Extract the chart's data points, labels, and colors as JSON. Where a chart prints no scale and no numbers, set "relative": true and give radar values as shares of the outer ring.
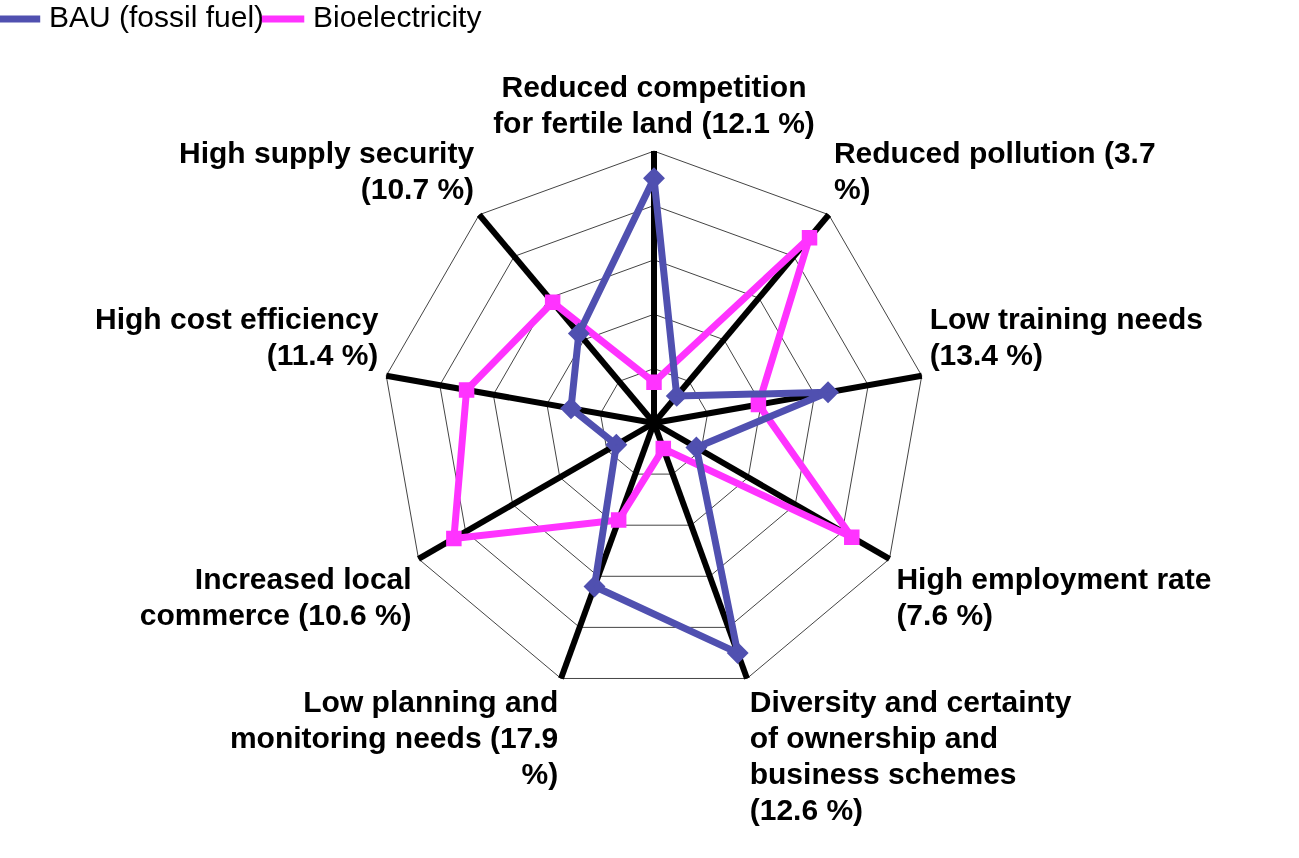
{
  "chart_data": {
    "type": "radar",
    "relative": true,
    "grid": true,
    "legend": "top left",
    "categories": [
      "Reduced competition for fertile land (12.1 %)",
      "Reduced pollution (3.7 %)",
      "Low training needs (13.4 %)",
      "High employment rate (7.6 %)",
      "Diversity and certainty of ownership and business schemes (12.6 %)",
      "Low planning and monitoring needs (17.9 %)",
      "Increased local commerce (10.6 %)",
      "High cost efficiency (11.4 %)",
      "High supply security (10.7 %)"
    ],
    "series": [
      {
        "name": "BAU (fossil fuel)",
        "color": "#5050b0",
        "marker": "diamond",
        "values": [
          0.9,
          0.13,
          0.65,
          0.18,
          0.9,
          0.64,
          0.16,
          0.31,
          0.43
        ]
      },
      {
        "name": "Bioelectricity",
        "color": "#ff33ff",
        "marker": "square",
        "values": [
          0.15,
          0.89,
          0.39,
          0.84,
          0.1,
          0.38,
          0.85,
          0.7,
          0.58
        ]
      }
    ]
  }
}
